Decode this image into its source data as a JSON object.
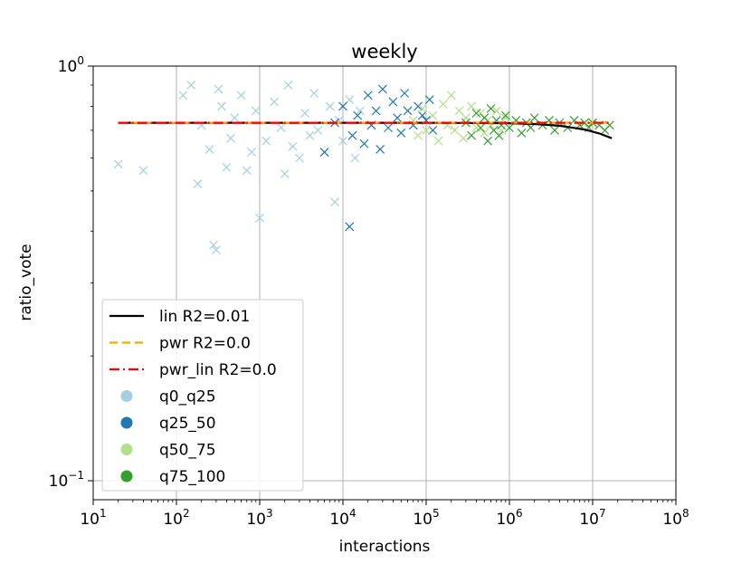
{
  "chart_data": {
    "type": "scatter",
    "title": "weekly",
    "xlabel": "interactions",
    "ylabel": "ratio_vote",
    "xscale": "log",
    "yscale": "log",
    "xlim": [
      10,
      100000000
    ],
    "ylim": [
      0.09,
      1.0
    ],
    "x_ticks": [
      {
        "value": 10,
        "base": "10",
        "exp": "1"
      },
      {
        "value": 100,
        "base": "10",
        "exp": "2"
      },
      {
        "value": 1000,
        "base": "10",
        "exp": "3"
      },
      {
        "value": 10000,
        "base": "10",
        "exp": "4"
      },
      {
        "value": 100000,
        "base": "10",
        "exp": "5"
      },
      {
        "value": 1000000,
        "base": "10",
        "exp": "6"
      },
      {
        "value": 10000000,
        "base": "10",
        "exp": "7"
      },
      {
        "value": 100000000,
        "base": "10",
        "exp": "8"
      }
    ],
    "y_ticks": [
      {
        "value": 0.1,
        "base": "10",
        "exp": "−1"
      },
      {
        "value": 1.0,
        "base": "10",
        "exp": "0"
      }
    ],
    "grid": true,
    "legend_position": "lower-left",
    "fit_lines": [
      {
        "name": "lin R2=0.01",
        "color": "#000000",
        "dash": "solid",
        "x": [
          20,
          100,
          1000,
          10000,
          100000,
          1000000,
          2000000,
          4000000,
          8000000,
          12000000,
          17000000
        ],
        "y": [
          0.73,
          0.73,
          0.73,
          0.73,
          0.73,
          0.728,
          0.725,
          0.718,
          0.703,
          0.688,
          0.67
        ]
      },
      {
        "name": "pwr R2=0.0",
        "color": "#ffa500",
        "dash": "dashed",
        "x": [
          20,
          17000000
        ],
        "y": [
          0.73,
          0.73
        ]
      },
      {
        "name": "pwr_lin R2=0.0",
        "color": "#ff0000",
        "dash": "dashdot",
        "x": [
          20,
          17000000
        ],
        "y": [
          0.73,
          0.73
        ]
      }
    ],
    "series": [
      {
        "name": "q0_q25",
        "color": "#a6cee3",
        "marker": "x",
        "points": [
          [
            20,
            0.58
          ],
          [
            40,
            0.56
          ],
          [
            120,
            0.85
          ],
          [
            150,
            0.9
          ],
          [
            180,
            0.52
          ],
          [
            200,
            0.72
          ],
          [
            250,
            0.63
          ],
          [
            280,
            0.37
          ],
          [
            300,
            0.36
          ],
          [
            320,
            0.88
          ],
          [
            350,
            0.8
          ],
          [
            400,
            0.57
          ],
          [
            450,
            0.67
          ],
          [
            500,
            0.75
          ],
          [
            600,
            0.85
          ],
          [
            700,
            0.56
          ],
          [
            800,
            0.62
          ],
          [
            900,
            0.78
          ],
          [
            1000,
            0.43
          ],
          [
            1200,
            0.66
          ],
          [
            1500,
            0.82
          ],
          [
            1800,
            0.71
          ],
          [
            2000,
            0.55
          ],
          [
            2200,
            0.9
          ],
          [
            2500,
            0.64
          ],
          [
            3000,
            0.6
          ],
          [
            3500,
            0.77
          ],
          [
            4000,
            0.68
          ],
          [
            4500,
            0.86
          ],
          [
            5000,
            0.7
          ],
          [
            6000,
            0.62
          ],
          [
            7000,
            0.8
          ],
          [
            8000,
            0.47
          ],
          [
            9000,
            0.74
          ],
          [
            10000,
            0.66
          ],
          [
            12000,
            0.83
          ],
          [
            14000,
            0.6
          ],
          [
            16000,
            0.78
          ]
        ]
      },
      {
        "name": "q25_50",
        "color": "#1f78b4",
        "marker": "x",
        "points": [
          [
            6000,
            0.62
          ],
          [
            8000,
            0.73
          ],
          [
            10000,
            0.8
          ],
          [
            12000,
            0.41
          ],
          [
            13000,
            0.68
          ],
          [
            15000,
            0.76
          ],
          [
            18000,
            0.65
          ],
          [
            20000,
            0.85
          ],
          [
            22000,
            0.72
          ],
          [
            25000,
            0.78
          ],
          [
            28000,
            0.63
          ],
          [
            30000,
            0.88
          ],
          [
            35000,
            0.71
          ],
          [
            40000,
            0.82
          ],
          [
            45000,
            0.75
          ],
          [
            50000,
            0.69
          ],
          [
            55000,
            0.86
          ],
          [
            60000,
            0.78
          ],
          [
            70000,
            0.72
          ],
          [
            80000,
            0.8
          ],
          [
            90000,
            0.76
          ],
          [
            100000,
            0.74
          ],
          [
            110000,
            0.83
          ],
          [
            120000,
            0.7
          ]
        ]
      },
      {
        "name": "q50_75",
        "color": "#b2df8a",
        "marker": "x",
        "points": [
          [
            70000,
            0.74
          ],
          [
            80000,
            0.68
          ],
          [
            90000,
            0.79
          ],
          [
            100000,
            0.7
          ],
          [
            120000,
            0.76
          ],
          [
            140000,
            0.66
          ],
          [
            160000,
            0.81
          ],
          [
            180000,
            0.72
          ],
          [
            200000,
            0.85
          ],
          [
            220000,
            0.7
          ],
          [
            250000,
            0.78
          ],
          [
            280000,
            0.67
          ],
          [
            300000,
            0.75
          ],
          [
            350000,
            0.8
          ],
          [
            400000,
            0.71
          ],
          [
            450000,
            0.77
          ],
          [
            500000,
            0.69
          ],
          [
            550000,
            0.74
          ],
          [
            600000,
            0.72
          ],
          [
            700000,
            0.78
          ],
          [
            800000,
            0.7
          ],
          [
            900000,
            0.75
          ]
        ]
      },
      {
        "name": "q75_100",
        "color": "#33a02c",
        "marker": "x",
        "points": [
          [
            300000,
            0.73
          ],
          [
            350000,
            0.68
          ],
          [
            400000,
            0.77
          ],
          [
            450000,
            0.71
          ],
          [
            500000,
            0.75
          ],
          [
            550000,
            0.66
          ],
          [
            600000,
            0.79
          ],
          [
            650000,
            0.7
          ],
          [
            700000,
            0.74
          ],
          [
            750000,
            0.68
          ],
          [
            800000,
            0.72
          ],
          [
            900000,
            0.76
          ],
          [
            1000000,
            0.71
          ],
          [
            1200000,
            0.74
          ],
          [
            1400000,
            0.69
          ],
          [
            1600000,
            0.73
          ],
          [
            1800000,
            0.71
          ],
          [
            2000000,
            0.75
          ],
          [
            2500000,
            0.72
          ],
          [
            3000000,
            0.74
          ],
          [
            3500000,
            0.7
          ],
          [
            4000000,
            0.73
          ],
          [
            5000000,
            0.71
          ],
          [
            6000000,
            0.74
          ],
          [
            7000000,
            0.72
          ],
          [
            8000000,
            0.73
          ],
          [
            9000000,
            0.71
          ],
          [
            10000000,
            0.73
          ],
          [
            12000000,
            0.72
          ],
          [
            14000000,
            0.7
          ],
          [
            16000000,
            0.72
          ]
        ]
      }
    ]
  }
}
